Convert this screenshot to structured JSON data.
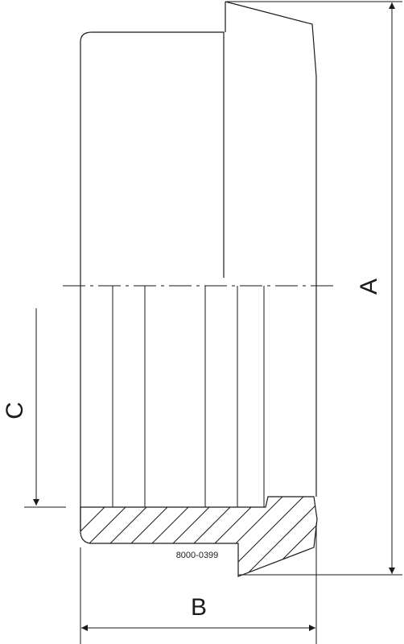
{
  "labels": {
    "a": "A",
    "b": "B",
    "c": "C",
    "drawing_number": "8000-0399"
  }
}
